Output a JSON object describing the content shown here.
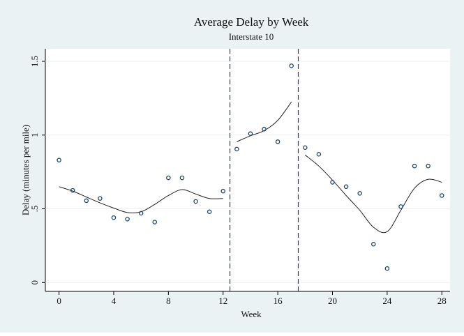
{
  "chart_data": {
    "type": "scatter",
    "title": "Average Delay by Week",
    "subtitle": "Interstate 10",
    "x_label": "Week",
    "y_label": "Delay (minutes per mile)",
    "x": [
      0,
      1,
      2,
      3,
      4,
      5,
      6,
      7,
      8,
      9,
      10,
      11,
      12,
      13,
      14,
      15,
      16,
      17,
      18,
      19,
      20,
      21,
      22,
      23,
      24,
      25,
      26,
      27,
      28
    ],
    "values": [
      0.83,
      0.625,
      0.555,
      0.57,
      0.44,
      0.43,
      0.47,
      0.41,
      0.71,
      0.71,
      0.55,
      0.48,
      0.62,
      0.905,
      1.01,
      1.04,
      0.955,
      1.47,
      0.915,
      0.87,
      0.68,
      0.65,
      0.605,
      0.26,
      0.095,
      0.515,
      0.79,
      0.79,
      0.59
    ],
    "color": "#1a476f",
    "fits": [
      {
        "x": [
          0,
          1,
          2,
          3,
          4,
          5,
          6,
          7,
          8,
          9,
          10,
          11,
          12
        ],
        "values": [
          0.65,
          0.62,
          0.58,
          0.54,
          0.505,
          0.475,
          0.48,
          0.53,
          0.59,
          0.63,
          0.6,
          0.57,
          0.57
        ]
      },
      {
        "x": [
          13,
          14,
          15,
          16,
          17
        ],
        "values": [
          0.955,
          0.995,
          1.03,
          1.1,
          1.225
        ]
      },
      {
        "x": [
          18,
          19,
          20,
          21,
          22,
          23,
          24,
          25,
          26,
          27,
          28
        ],
        "values": [
          0.865,
          0.79,
          0.695,
          0.59,
          0.49,
          0.375,
          0.345,
          0.49,
          0.64,
          0.7,
          0.68
        ]
      }
    ],
    "fit_color": "#222222",
    "vlines": [
      12.5,
      17.5
    ],
    "xlim": [
      -1,
      28.6
    ],
    "ylim": [
      -0.06,
      1.585
    ],
    "xticks": [
      0,
      4,
      8,
      12,
      16,
      20,
      24,
      28
    ],
    "yticks": [
      0,
      {
        "value": 0.5,
        "label": ".5"
      },
      1,
      1.5
    ],
    "grid": true
  }
}
